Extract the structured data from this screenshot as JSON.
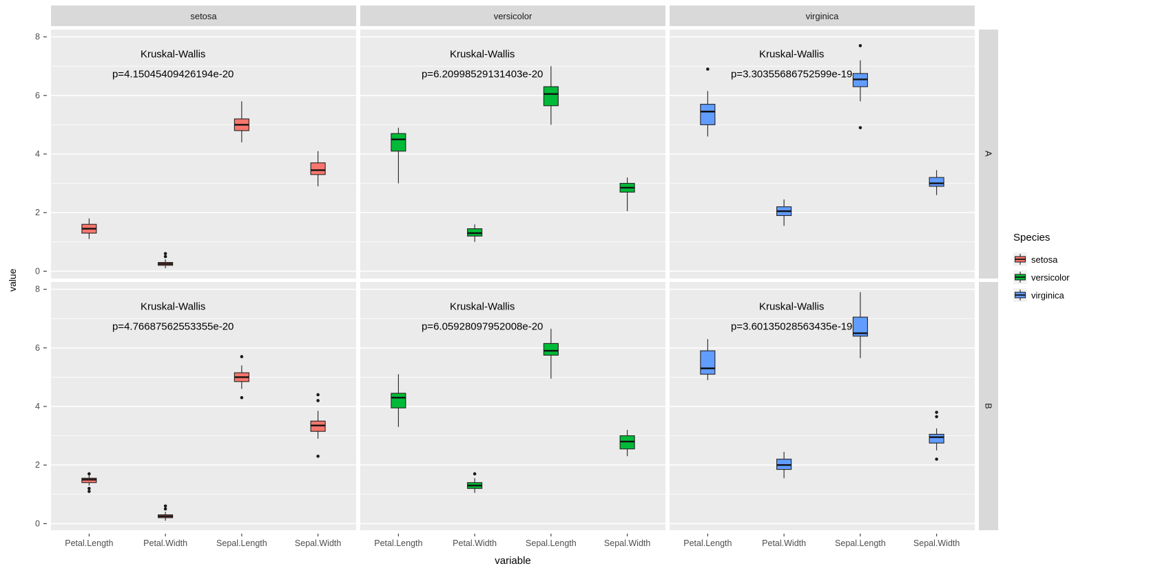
{
  "chart_data": {
    "type": "bar",
    "subtype": "boxplot",
    "title": "",
    "xlabel": "variable",
    "ylabel": "value",
    "yticks": [
      0,
      2,
      4,
      6,
      8
    ],
    "minor_ticks": [
      1,
      3,
      5,
      7
    ],
    "ylim": [
      -0.25,
      8.25
    ],
    "categories": [
      "Petal.Length",
      "Petal.Width",
      "Sepal.Length",
      "Sepal.Width"
    ],
    "col_facets": [
      "setosa",
      "versicolor",
      "virginica"
    ],
    "row_facets": [
      "A",
      "B"
    ],
    "panel_bg": "#EBEBEB",
    "strip_bg": "#D9D9D9",
    "grid_color": "#FFFFFF",
    "annotation_x": 0.4,
    "annotation_y1": 7.3,
    "annotation_y2": 6.62,
    "species_colors": {
      "setosa": "#F8766D",
      "versicolor": "#00BA38",
      "virginica": "#619CFF"
    },
    "legend": {
      "title": "Species",
      "entries": [
        {
          "label": "setosa",
          "color": "#F8766D"
        },
        {
          "label": "versicolor",
          "color": "#00BA38"
        },
        {
          "label": "virginica",
          "color": "#619CFF"
        }
      ]
    },
    "panels": [
      {
        "row": "A",
        "col": "setosa",
        "annotation": {
          "line1": "Kruskal-Wallis",
          "line2": "p=4.15045409426194e-20"
        },
        "boxes": [
          {
            "variable": "Petal.Length",
            "whisker_low": 1.1,
            "q1": 1.3,
            "median": 1.45,
            "q3": 1.6,
            "whisker_high": 1.8,
            "outliers": []
          },
          {
            "variable": "Petal.Width",
            "whisker_low": 0.1,
            "q1": 0.2,
            "median": 0.25,
            "q3": 0.3,
            "whisker_high": 0.4,
            "outliers": [
              0.5,
              0.6
            ]
          },
          {
            "variable": "Sepal.Length",
            "whisker_low": 4.4,
            "q1": 4.8,
            "median": 5.0,
            "q3": 5.2,
            "whisker_high": 5.8,
            "outliers": []
          },
          {
            "variable": "Sepal.Width",
            "whisker_low": 2.9,
            "q1": 3.3,
            "median": 3.45,
            "q3": 3.7,
            "whisker_high": 4.1,
            "outliers": []
          }
        ]
      },
      {
        "row": "A",
        "col": "versicolor",
        "annotation": {
          "line1": "Kruskal-Wallis",
          "line2": "p=6.20998529131403e-20"
        },
        "boxes": [
          {
            "variable": "Petal.Length",
            "whisker_low": 3.0,
            "q1": 4.1,
            "median": 4.5,
            "q3": 4.7,
            "whisker_high": 4.9,
            "outliers": []
          },
          {
            "variable": "Petal.Width",
            "whisker_low": 1.0,
            "q1": 1.2,
            "median": 1.3,
            "q3": 1.45,
            "whisker_high": 1.6,
            "outliers": []
          },
          {
            "variable": "Sepal.Length",
            "whisker_low": 5.0,
            "q1": 5.65,
            "median": 6.05,
            "q3": 6.3,
            "whisker_high": 7.0,
            "outliers": []
          },
          {
            "variable": "Sepal.Width",
            "whisker_low": 2.05,
            "q1": 2.7,
            "median": 2.85,
            "q3": 3.0,
            "whisker_high": 3.2,
            "outliers": []
          }
        ]
      },
      {
        "row": "A",
        "col": "virginica",
        "annotation": {
          "line1": "Kruskal-Wallis",
          "line2": "p=3.30355686752599e-19"
        },
        "boxes": [
          {
            "variable": "Petal.Length",
            "whisker_low": 4.6,
            "q1": 5.0,
            "median": 5.45,
            "q3": 5.7,
            "whisker_high": 6.15,
            "outliers": [
              6.9
            ]
          },
          {
            "variable": "Petal.Width",
            "whisker_low": 1.55,
            "q1": 1.9,
            "median": 2.05,
            "q3": 2.2,
            "whisker_high": 2.45,
            "outliers": []
          },
          {
            "variable": "Sepal.Length",
            "whisker_low": 5.8,
            "q1": 6.3,
            "median": 6.55,
            "q3": 6.75,
            "whisker_high": 7.2,
            "outliers": [
              7.7,
              4.9
            ]
          },
          {
            "variable": "Sepal.Width",
            "whisker_low": 2.6,
            "q1": 2.9,
            "median": 3.0,
            "q3": 3.2,
            "whisker_high": 3.45,
            "outliers": []
          }
        ]
      },
      {
        "row": "B",
        "col": "setosa",
        "annotation": {
          "line1": "Kruskal-Wallis",
          "line2": "p=4.76687562553355e-20"
        },
        "boxes": [
          {
            "variable": "Petal.Length",
            "whisker_low": 1.3,
            "q1": 1.4,
            "median": 1.5,
            "q3": 1.55,
            "whisker_high": 1.65,
            "outliers": [
              1.1,
              1.2,
              1.7
            ]
          },
          {
            "variable": "Petal.Width",
            "whisker_low": 0.1,
            "q1": 0.2,
            "median": 0.25,
            "q3": 0.3,
            "whisker_high": 0.4,
            "outliers": [
              0.5,
              0.6
            ]
          },
          {
            "variable": "Sepal.Length",
            "whisker_low": 4.6,
            "q1": 4.85,
            "median": 5.0,
            "q3": 5.15,
            "whisker_high": 5.4,
            "outliers": [
              4.3,
              5.7
            ]
          },
          {
            "variable": "Sepal.Width",
            "whisker_low": 2.9,
            "q1": 3.15,
            "median": 3.35,
            "q3": 3.5,
            "whisker_high": 3.85,
            "outliers": [
              2.3,
              4.2,
              4.4
            ]
          }
        ]
      },
      {
        "row": "B",
        "col": "versicolor",
        "annotation": {
          "line1": "Kruskal-Wallis",
          "line2": "p=6.05928097952008e-20"
        },
        "boxes": [
          {
            "variable": "Petal.Length",
            "whisker_low": 3.3,
            "q1": 3.95,
            "median": 4.3,
            "q3": 4.45,
            "whisker_high": 5.1,
            "outliers": []
          },
          {
            "variable": "Petal.Width",
            "whisker_low": 1.05,
            "q1": 1.2,
            "median": 1.3,
            "q3": 1.4,
            "whisker_high": 1.55,
            "outliers": [
              1.7
            ]
          },
          {
            "variable": "Sepal.Length",
            "whisker_low": 4.95,
            "q1": 5.75,
            "median": 5.9,
            "q3": 6.15,
            "whisker_high": 6.65,
            "outliers": []
          },
          {
            "variable": "Sepal.Width",
            "whisker_low": 2.3,
            "q1": 2.55,
            "median": 2.8,
            "q3": 3.0,
            "whisker_high": 3.2,
            "outliers": []
          }
        ]
      },
      {
        "row": "B",
        "col": "virginica",
        "annotation": {
          "line1": "Kruskal-Wallis",
          "line2": "p=3.60135028563435e-19"
        },
        "boxes": [
          {
            "variable": "Petal.Length",
            "whisker_low": 4.9,
            "q1": 5.1,
            "median": 5.3,
            "q3": 5.9,
            "whisker_high": 6.3,
            "outliers": []
          },
          {
            "variable": "Petal.Width",
            "whisker_low": 1.55,
            "q1": 1.85,
            "median": 2.0,
            "q3": 2.2,
            "whisker_high": 2.45,
            "outliers": []
          },
          {
            "variable": "Sepal.Length",
            "whisker_low": 5.65,
            "q1": 6.4,
            "median": 6.5,
            "q3": 7.05,
            "whisker_high": 7.9,
            "outliers": []
          },
          {
            "variable": "Sepal.Width",
            "whisker_low": 2.5,
            "q1": 2.75,
            "median": 2.95,
            "q3": 3.05,
            "whisker_high": 3.25,
            "outliers": [
              2.2,
              3.65,
              3.8
            ]
          }
        ]
      }
    ]
  }
}
